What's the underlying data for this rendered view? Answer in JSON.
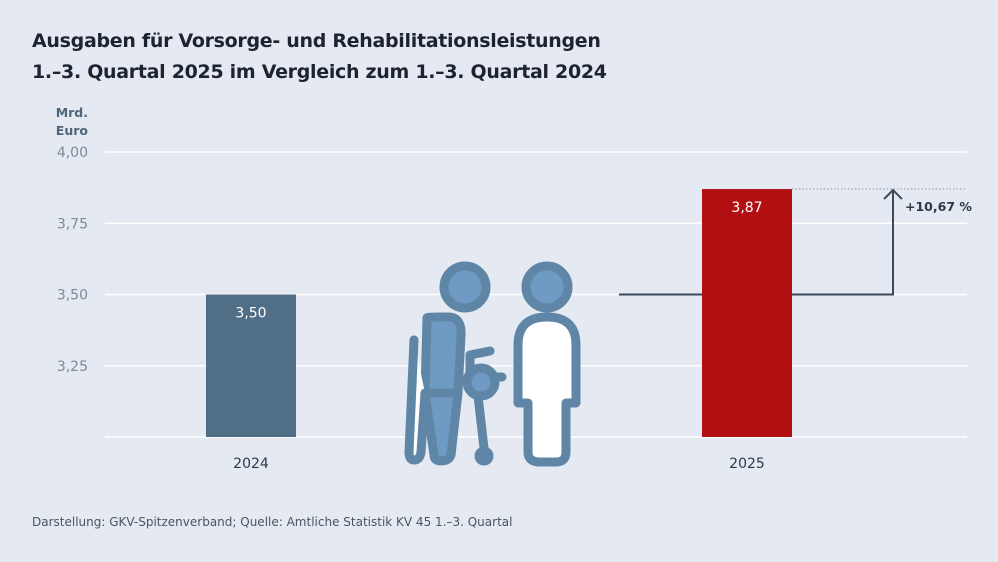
{
  "title_line1": "Ausgaben für Vorsorge- und Rehabilitationsleistungen",
  "title_line2": "1.–3. Quartal 2025 im Vergleich zum 1.–3. Quartal 2024",
  "source": "Darstellung: GKV-Spitzenverband; Quelle: Amtliche Statistik KV 45 1.–3. Quartal",
  "icon": "two-persons-with-walker-icon",
  "chart_data": {
    "type": "bar",
    "ylabel_line1": "Mrd.",
    "ylabel_line2": "Euro",
    "ylim": [
      3.0,
      4.0
    ],
    "yticks": [
      "4,00",
      "3,75",
      "3,50",
      "3,25"
    ],
    "ytick_values": [
      4.0,
      3.75,
      3.5,
      3.25
    ],
    "grid": true,
    "categories": [
      "2024",
      "2025"
    ],
    "values": [
      3.5,
      3.87
    ],
    "data_labels": [
      "3,50",
      "3,87"
    ],
    "colors": [
      "#516e87",
      "#b20f12"
    ],
    "change_label": "+10,67 %"
  }
}
